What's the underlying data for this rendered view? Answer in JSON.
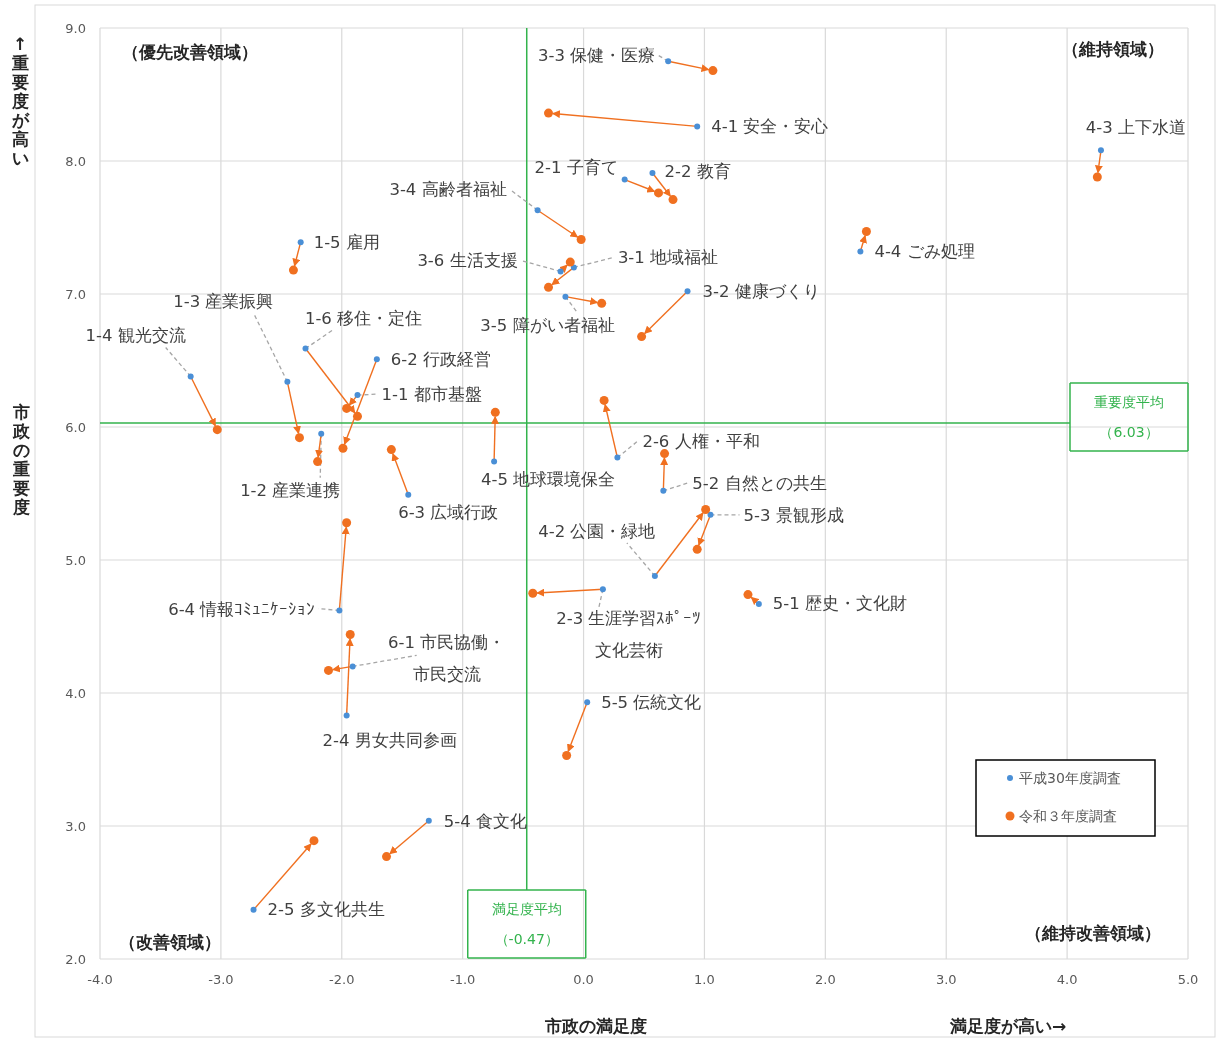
{
  "chart_data": {
    "type": "scatter",
    "xlabel": "市政の満足度",
    "ylabel": "市政の重要度",
    "xlim": [
      -4,
      5
    ],
    "ylim": [
      2,
      9
    ],
    "xticks": [
      {
        "value": -4,
        "label": "-4.0"
      },
      {
        "value": -3,
        "label": "-3.0"
      },
      {
        "value": -2,
        "label": "-2.0"
      },
      {
        "value": -1,
        "label": "-1.0"
      },
      {
        "value": 0,
        "label": "0.0"
      },
      {
        "value": 1,
        "label": "1.0"
      },
      {
        "value": 2,
        "label": "2.0"
      },
      {
        "value": 3,
        "label": "3.0"
      },
      {
        "value": 4,
        "label": "4.0"
      },
      {
        "value": 5,
        "label": "5.0"
      }
    ],
    "yticks": [
      {
        "value": 2,
        "label": "2.0"
      },
      {
        "value": 3,
        "label": "3.0"
      },
      {
        "value": 4,
        "label": "4.0"
      },
      {
        "value": 5,
        "label": "5.0"
      },
      {
        "value": 6,
        "label": "6.0"
      },
      {
        "value": 7,
        "label": "7.0"
      },
      {
        "value": 8,
        "label": "8.0"
      },
      {
        "value": 9,
        "label": "9.0"
      }
    ],
    "grid": true,
    "legend": "bottom right",
    "marker": "circle",
    "series": [
      {
        "name": "平成30年度調査",
        "color": "#4a8fd6",
        "x": [
          0.7,
          0.94,
          4.28,
          0.34,
          0.57,
          -0.38,
          2.29,
          -2.34,
          -0.19,
          -0.08,
          -0.15,
          0.86,
          -2.45,
          -3.25,
          -2.3,
          -1.71,
          -1.87,
          -2.17,
          -1.45,
          -0.74,
          0.28,
          0.66,
          1.05,
          0.59,
          1.45,
          0.16,
          -2.02,
          -1.91,
          -1.96,
          0.03,
          -1.28,
          -2.73
        ],
        "values": [
          8.75,
          8.26,
          8.08,
          7.86,
          7.91,
          7.63,
          7.32,
          7.39,
          7.17,
          7.2,
          6.98,
          7.02,
          6.34,
          6.38,
          6.59,
          6.51,
          6.24,
          5.95,
          5.49,
          5.74,
          5.77,
          5.52,
          5.34,
          4.88,
          4.67,
          4.78,
          4.62,
          4.2,
          3.83,
          3.93,
          3.04,
          2.37
        ]
      },
      {
        "name": "令和３年度調査",
        "color": "#f07020",
        "x": [
          1.07,
          -0.29,
          4.25,
          0.62,
          0.74,
          -0.02,
          2.34,
          -2.4,
          -0.11,
          -0.29,
          0.15,
          0.48,
          -2.35,
          -3.03,
          -1.87,
          -1.99,
          -1.96,
          -2.2,
          -1.59,
          -0.73,
          0.17,
          0.67,
          0.94,
          1.01,
          1.36,
          -0.42,
          -1.96,
          -2.11,
          -1.93,
          -0.14,
          -1.63,
          -2.23
        ],
        "values": [
          8.68,
          8.36,
          7.88,
          7.76,
          7.71,
          7.41,
          7.47,
          7.18,
          7.24,
          7.05,
          6.93,
          6.68,
          5.92,
          5.98,
          6.08,
          5.84,
          6.14,
          5.74,
          5.83,
          6.11,
          6.2,
          5.8,
          5.08,
          5.38,
          4.74,
          4.75,
          5.28,
          4.17,
          4.44,
          3.53,
          2.77,
          2.89
        ]
      }
    ],
    "ref_lines": [
      {
        "axis": "x",
        "value": -0.47,
        "label": "満足度平均（-0.47）",
        "color": "#33b34d"
      },
      {
        "axis": "y",
        "value": 6.03,
        "label": "重要度平均（6.03）",
        "color": "#33b34d"
      }
    ],
    "annotations": [
      "（優先改善領域）",
      "（維持領域）",
      "（改善領域）",
      "（維持改善領域）",
      "満足度が高い→",
      "↑重要度が高い",
      {
        "text": "3-3 保健・医療",
        "x": 0.7,
        "y": 8.75
      },
      {
        "text": "4-1 安全・安心",
        "x": 0.94,
        "y": 8.26
      },
      {
        "text": "4-3 上下水道",
        "x": 4.28,
        "y": 8.08
      },
      {
        "text": "2-1 子育て",
        "x": 0.34,
        "y": 7.86
      },
      {
        "text": "2-2 教育",
        "x": 0.57,
        "y": 7.91
      },
      {
        "text": "3-4 高齢者福祉",
        "x": -0.38,
        "y": 7.63
      },
      {
        "text": "4-4 ごみ処理",
        "x": 2.29,
        "y": 7.32
      },
      {
        "text": "1-5 雇用",
        "x": -2.34,
        "y": 7.39
      },
      {
        "text": "3-6 生活支援",
        "x": -0.19,
        "y": 7.17
      },
      {
        "text": "3-1 地域福祉",
        "x": -0.08,
        "y": 7.2
      },
      {
        "text": "3-5 障がい者福祉",
        "x": -0.15,
        "y": 6.98
      },
      {
        "text": "3-2 健康づくり",
        "x": 0.86,
        "y": 7.02
      },
      {
        "text": "1-3 産業振興",
        "x": -2.45,
        "y": 6.34
      },
      {
        "text": "1-4 観光交流",
        "x": -3.25,
        "y": 6.38
      },
      {
        "text": "1-6 移住・定住",
        "x": -2.3,
        "y": 6.59
      },
      {
        "text": "6-2 行政経営",
        "x": -1.71,
        "y": 6.51
      },
      {
        "text": "1-1 都市基盤",
        "x": -1.87,
        "y": 6.24
      },
      {
        "text": "1-2 産業連携",
        "x": -2.17,
        "y": 5.95
      },
      {
        "text": "6-3 広域行政",
        "x": -1.45,
        "y": 5.49
      },
      {
        "text": "4-5 地球環境保全",
        "x": -0.74,
        "y": 5.74
      },
      {
        "text": "2-6 人権・平和",
        "x": 0.28,
        "y": 5.77
      },
      {
        "text": "5-2 自然との共生",
        "x": 0.66,
        "y": 5.52
      },
      {
        "text": "5-3 景観形成",
        "x": 1.05,
        "y": 5.34
      },
      {
        "text": "4-2 公園・緑地",
        "x": 0.59,
        "y": 4.88
      },
      {
        "text": "5-1 歴史・文化財",
        "x": 1.45,
        "y": 4.67
      },
      {
        "text": "2-3 生涯学習ｽﾎﾟｰﾂ文化芸術",
        "x": 0.16,
        "y": 4.78
      },
      {
        "text": "6-4 情報ｺﾐｭﾆｹｰｼｮﾝ",
        "x": -2.02,
        "y": 4.62
      },
      {
        "text": "6-1 市民協働・市民交流",
        "x": -1.91,
        "y": 4.2
      },
      {
        "text": "2-4 男女共同参画",
        "x": -1.96,
        "y": 3.83
      },
      {
        "text": "5-5 伝統文化",
        "x": 0.03,
        "y": 3.93
      },
      {
        "text": "5-4 食文化",
        "x": -1.28,
        "y": 3.04
      },
      {
        "text": "2-5 多文化共生",
        "x": -2.73,
        "y": 2.37
      }
    ]
  }
}
